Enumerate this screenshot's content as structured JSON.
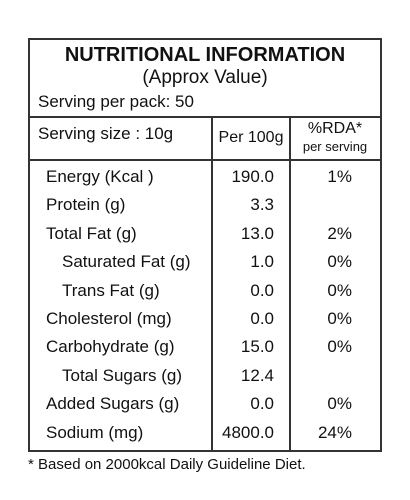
{
  "header": {
    "title": "NUTRITIONAL INFORMATION",
    "subtitle": "(Approx Value)",
    "serving_per_pack": "Serving per pack: 50",
    "serving_size": "Serving size : 10g"
  },
  "table": {
    "columns": [
      "Per 100g",
      "%RDA*",
      "per serving"
    ],
    "rows": [
      [
        "Energy (Kcal )",
        "190.0",
        "1%"
      ],
      [
        "Protein (g)",
        "3.3",
        null
      ],
      [
        "Total Fat (g)",
        "13.0",
        "2%"
      ],
      [
        "Saturated Fat (g)",
        "1.0",
        "0%"
      ],
      [
        "Trans Fat (g)",
        "0.0",
        "0%"
      ],
      [
        "Cholesterol (mg)",
        "0.0",
        "0%"
      ],
      [
        "Carbohydrate (g)",
        "15.0",
        "0%"
      ],
      [
        "Total Sugars (g)",
        "12.4",
        null
      ],
      [
        "Added Sugars (g)",
        "0.0",
        "0%"
      ],
      [
        "Sodium (mg)",
        "4800.0",
        "24%"
      ]
    ]
  },
  "footnote": "* Based on 2000kcal Daily Guideline Diet."
}
